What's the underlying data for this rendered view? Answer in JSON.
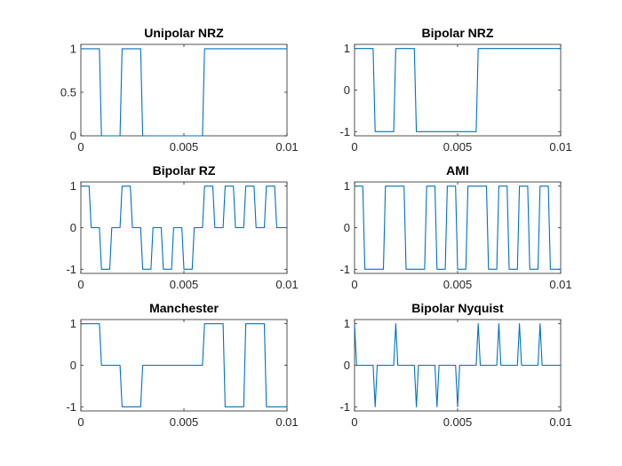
{
  "figure": {
    "background": "#ffffff",
    "axis_color": "#262626",
    "line_color": "#0072bd"
  },
  "chart_data": [
    {
      "type": "line",
      "title": "Unipolar NRZ",
      "xlabel": "",
      "ylabel": "",
      "xlim": [
        0,
        0.01
      ],
      "ylim": [
        0,
        1.05
      ],
      "xticks": [
        0,
        0.005,
        0.01
      ],
      "xtick_labels": [
        "0",
        "0.005",
        "0.01"
      ],
      "yticks": [
        0,
        0.5,
        1
      ],
      "ytick_labels": [
        "0",
        "0.5",
        "1"
      ],
      "grid": false,
      "series": [
        {
          "color": "#0072bd",
          "x": [
            0,
            0.0009,
            0.001,
            0.0019,
            0.002,
            0.0029,
            0.003,
            0.0059,
            0.006,
            0.01
          ],
          "y": [
            1,
            1,
            0,
            0,
            1,
            1,
            0,
            0,
            1,
            1
          ]
        }
      ]
    },
    {
      "type": "line",
      "title": "Bipolar NRZ",
      "xlabel": "",
      "ylabel": "",
      "xlim": [
        0,
        0.01
      ],
      "ylim": [
        -1.1,
        1.1
      ],
      "xticks": [
        0,
        0.005,
        0.01
      ],
      "xtick_labels": [
        "0",
        "0.005",
        "0.01"
      ],
      "yticks": [
        -1,
        0,
        1
      ],
      "ytick_labels": [
        "-1",
        "0",
        "1"
      ],
      "grid": false,
      "series": [
        {
          "color": "#0072bd",
          "x": [
            0,
            0.0009,
            0.001,
            0.0019,
            0.002,
            0.0029,
            0.003,
            0.0059,
            0.006,
            0.01
          ],
          "y": [
            1,
            1,
            -1,
            -1,
            1,
            1,
            -1,
            -1,
            1,
            1
          ]
        }
      ]
    },
    {
      "type": "line",
      "title": "Bipolar RZ",
      "xlabel": "",
      "ylabel": "",
      "xlim": [
        0,
        0.01
      ],
      "ylim": [
        -1.1,
        1.1
      ],
      "xticks": [
        0,
        0.005,
        0.01
      ],
      "xtick_labels": [
        "0",
        "0.005",
        "0.01"
      ],
      "yticks": [
        -1,
        0,
        1
      ],
      "ytick_labels": [
        "-1",
        "0",
        "1"
      ],
      "grid": false,
      "series": [
        {
          "color": "#0072bd",
          "x": [
            0,
            0.0004,
            0.0005,
            0.0009,
            0.001,
            0.0014,
            0.0015,
            0.0019,
            0.002,
            0.0024,
            0.0025,
            0.0029,
            0.003,
            0.0034,
            0.0035,
            0.0039,
            0.004,
            0.0044,
            0.0045,
            0.0049,
            0.005,
            0.0054,
            0.0055,
            0.0059,
            0.006,
            0.0064,
            0.0065,
            0.0069,
            0.007,
            0.0074,
            0.0075,
            0.0079,
            0.008,
            0.0084,
            0.0085,
            0.0089,
            0.009,
            0.0094,
            0.0095,
            0.01
          ],
          "y": [
            1,
            1,
            0,
            0,
            -1,
            -1,
            0,
            0,
            1,
            1,
            0,
            0,
            -1,
            -1,
            0,
            0,
            -1,
            -1,
            0,
            0,
            -1,
            -1,
            0,
            0,
            1,
            1,
            0,
            0,
            1,
            1,
            0,
            0,
            1,
            1,
            0,
            0,
            1,
            1,
            0,
            0
          ]
        }
      ]
    },
    {
      "type": "line",
      "title": "AMI",
      "xlabel": "",
      "ylabel": "",
      "xlim": [
        0,
        0.01
      ],
      "ylim": [
        -1.1,
        1.1
      ],
      "xticks": [
        0,
        0.005,
        0.01
      ],
      "xtick_labels": [
        "0",
        "0.005",
        "0.01"
      ],
      "yticks": [
        -1,
        0,
        1
      ],
      "ytick_labels": [
        "-1",
        "0",
        "1"
      ],
      "grid": false,
      "series": [
        {
          "color": "#0072bd",
          "x": [
            0,
            0.0004,
            0.0005,
            0.0014,
            0.0015,
            0.0024,
            0.0025,
            0.0034,
            0.0035,
            0.0039,
            0.004,
            0.0044,
            0.0045,
            0.0049,
            0.005,
            0.0054,
            0.0055,
            0.0064,
            0.0065,
            0.0069,
            0.007,
            0.0074,
            0.0075,
            0.0079,
            0.008,
            0.0084,
            0.0085,
            0.0089,
            0.009,
            0.0094,
            0.0095,
            0.01
          ],
          "y": [
            1,
            1,
            -1,
            -1,
            1,
            1,
            -1,
            -1,
            1,
            1,
            -1,
            -1,
            1,
            1,
            -1,
            -1,
            1,
            1,
            -1,
            -1,
            1,
            1,
            -1,
            -1,
            1,
            1,
            -1,
            -1,
            1,
            1,
            -1,
            -1
          ]
        }
      ]
    },
    {
      "type": "line",
      "title": "Manchester",
      "xlabel": "",
      "ylabel": "",
      "xlim": [
        0,
        0.01
      ],
      "ylim": [
        -1.1,
        1.1
      ],
      "xticks": [
        0,
        0.005,
        0.01
      ],
      "xtick_labels": [
        "0",
        "0.005",
        "0.01"
      ],
      "yticks": [
        -1,
        0,
        1
      ],
      "ytick_labels": [
        "-1",
        "0",
        "1"
      ],
      "grid": false,
      "series": [
        {
          "color": "#0072bd",
          "x": [
            0,
            0.0009,
            0.001,
            0.0019,
            0.002,
            0.0029,
            0.003,
            0.0059,
            0.006,
            0.0069,
            0.007,
            0.0079,
            0.008,
            0.0089,
            0.009,
            0.01
          ],
          "y": [
            1,
            1,
            0,
            0,
            -1,
            -1,
            0,
            0,
            1,
            1,
            -1,
            -1,
            1,
            1,
            -1,
            -1
          ]
        }
      ]
    },
    {
      "type": "line",
      "title": "Bipolar Nyquist",
      "xlabel": "",
      "ylabel": "",
      "xlim": [
        0,
        0.01
      ],
      "ylim": [
        -1.1,
        1.1
      ],
      "xticks": [
        0,
        0.005,
        0.01
      ],
      "xtick_labels": [
        "0",
        "0.005",
        "0.01"
      ],
      "yticks": [
        -1,
        0,
        1
      ],
      "ytick_labels": [
        "-1",
        "0",
        "1"
      ],
      "grid": false,
      "series": [
        {
          "color": "#0072bd",
          "x": [
            0,
            0.0001,
            0.0009,
            0.001,
            0.0011,
            0.0019,
            0.002,
            0.0021,
            0.0029,
            0.003,
            0.0031,
            0.0039,
            0.004,
            0.0041,
            0.0049,
            0.005,
            0.0051,
            0.0059,
            0.006,
            0.0061,
            0.0069,
            0.007,
            0.0071,
            0.0079,
            0.008,
            0.0081,
            0.0089,
            0.009,
            0.0091,
            0.01
          ],
          "y": [
            1,
            0,
            0,
            -1,
            0,
            0,
            1,
            0,
            0,
            -1,
            0,
            0,
            -1,
            0,
            0,
            -1,
            0,
            0,
            1,
            0,
            0,
            1,
            0,
            0,
            1,
            0,
            0,
            1,
            0,
            0
          ]
        }
      ]
    }
  ]
}
